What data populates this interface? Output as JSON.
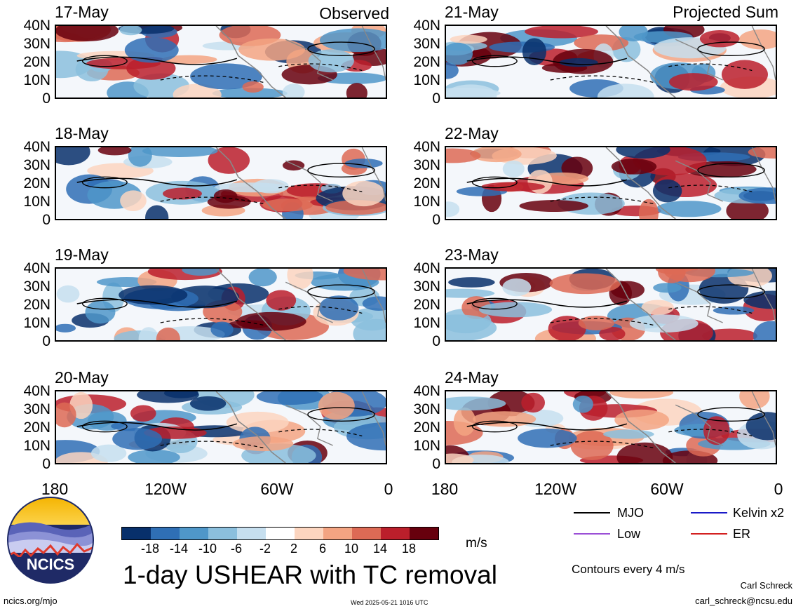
{
  "headers": {
    "left": "Observed",
    "right": "Projected Sum"
  },
  "panels": [
    {
      "date": "17-May",
      "seed": 3
    },
    {
      "date": "21-May",
      "seed": 7
    },
    {
      "date": "18-May",
      "seed": 11
    },
    {
      "date": "22-May",
      "seed": 13
    },
    {
      "date": "19-May",
      "seed": 17
    },
    {
      "date": "23-May",
      "seed": 19
    },
    {
      "date": "20-May",
      "seed": 23
    },
    {
      "date": "24-May",
      "seed": 29
    }
  ],
  "y_ticks": [
    "40N",
    "30N",
    "20N",
    "10N",
    "0"
  ],
  "x_ticks": [
    "180",
    "120W",
    "60W",
    "0"
  ],
  "colorbar": {
    "colors": [
      "#08306b",
      "#2f6fb5",
      "#4f97c9",
      "#8bbfdd",
      "#c6dfef",
      "#ffffff",
      "#fcd5bf",
      "#f3a482",
      "#dd6a55",
      "#bb1f2b",
      "#67000d"
    ],
    "labels": [
      "-18",
      "-14",
      "-10",
      "-6",
      "-2",
      "2",
      "6",
      "10",
      "14",
      "18"
    ],
    "units": "m/s"
  },
  "title": "1-day USHEAR with TC removal",
  "legend": [
    {
      "label": "MJO",
      "color": "#000000"
    },
    {
      "label": "Kelvin x2",
      "color": "#1a1ac8"
    },
    {
      "label": "Low",
      "color": "#9b4fd6"
    },
    {
      "label": "ER",
      "color": "#d32020"
    }
  ],
  "contour_note": "Contours every 4 m/s",
  "logo": {
    "text": "NCICS"
  },
  "footer": {
    "url": "ncics.org/mjo",
    "timestamp": "Wed 2025-05-21 1016 UTC",
    "author": "Carl Schreck",
    "email": "carl_schreck@ncsu.edu"
  }
}
